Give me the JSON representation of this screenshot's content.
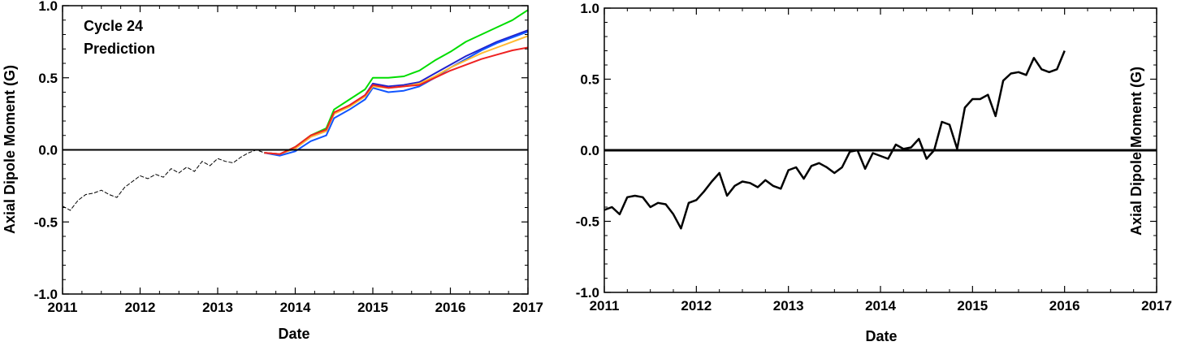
{
  "chart_data": [
    {
      "type": "line",
      "annotation_lines": [
        "Cycle 24",
        "Prediction"
      ],
      "xlabel": "Date",
      "ylabel": "Axial Dipole Moment (G)",
      "xlim": [
        2011,
        2017
      ],
      "ylim": [
        -1.0,
        1.0
      ],
      "xticks": [
        "2011",
        "2012",
        "2013",
        "2014",
        "2015",
        "2016",
        "2017"
      ],
      "yticks": [
        "-1.0",
        "-0.5",
        "0.0",
        "0.5",
        "1.0"
      ],
      "zero_line": true,
      "observed": {
        "style": "dashed-black",
        "x": [
          2011.0,
          2011.1,
          2011.2,
          2011.3,
          2011.4,
          2011.5,
          2011.6,
          2011.7,
          2011.8,
          2011.9,
          2012.0,
          2012.1,
          2012.2,
          2012.3,
          2012.4,
          2012.5,
          2012.6,
          2012.7,
          2012.8,
          2012.9,
          2013.0,
          2013.1,
          2013.2,
          2013.3,
          2013.4,
          2013.5,
          2013.6
        ],
        "y": [
          -0.39,
          -0.42,
          -0.35,
          -0.31,
          -0.3,
          -0.28,
          -0.31,
          -0.33,
          -0.26,
          -0.22,
          -0.18,
          -0.2,
          -0.17,
          -0.19,
          -0.13,
          -0.16,
          -0.12,
          -0.15,
          -0.08,
          -0.11,
          -0.06,
          -0.08,
          -0.09,
          -0.05,
          -0.02,
          0.0,
          -0.02
        ]
      },
      "series": [
        {
          "color": "#00dd00",
          "x": [
            2013.6,
            2013.8,
            2014.0,
            2014.2,
            2014.4,
            2014.5,
            2014.7,
            2014.9,
            2015.0,
            2015.2,
            2015.4,
            2015.6,
            2015.8,
            2016.0,
            2016.2,
            2016.4,
            2016.6,
            2016.8,
            2017.0
          ],
          "y": [
            -0.02,
            -0.03,
            0.02,
            0.1,
            0.15,
            0.28,
            0.35,
            0.42,
            0.5,
            0.5,
            0.51,
            0.55,
            0.62,
            0.68,
            0.75,
            0.8,
            0.85,
            0.9,
            0.97
          ]
        },
        {
          "color": "#2222cc",
          "x": [
            2013.6,
            2013.8,
            2014.0,
            2014.2,
            2014.4,
            2014.5,
            2014.7,
            2014.9,
            2015.0,
            2015.2,
            2015.4,
            2015.6,
            2015.8,
            2016.0,
            2016.2,
            2016.4,
            2016.6,
            2016.8,
            2017.0
          ],
          "y": [
            -0.02,
            -0.03,
            0.01,
            0.09,
            0.13,
            0.25,
            0.31,
            0.38,
            0.46,
            0.44,
            0.45,
            0.47,
            0.53,
            0.59,
            0.65,
            0.7,
            0.75,
            0.79,
            0.83
          ]
        },
        {
          "color": "#1155ff",
          "x": [
            2013.6,
            2013.8,
            2014.0,
            2014.2,
            2014.4,
            2014.5,
            2014.7,
            2014.9,
            2015.0,
            2015.2,
            2015.4,
            2015.6,
            2015.8,
            2016.0,
            2016.2,
            2016.4,
            2016.6,
            2016.8,
            2017.0
          ],
          "y": [
            -0.02,
            -0.04,
            -0.01,
            0.06,
            0.1,
            0.22,
            0.28,
            0.35,
            0.43,
            0.4,
            0.41,
            0.44,
            0.5,
            0.57,
            0.63,
            0.69,
            0.74,
            0.78,
            0.82
          ]
        },
        {
          "color": "#ffbb33",
          "x": [
            2013.6,
            2013.8,
            2014.0,
            2014.2,
            2014.4,
            2014.5,
            2014.7,
            2014.9,
            2015.0,
            2015.2,
            2015.4,
            2015.6,
            2015.8,
            2016.0,
            2016.2,
            2016.4,
            2016.6,
            2016.8,
            2017.0
          ],
          "y": [
            -0.02,
            -0.03,
            0.01,
            0.09,
            0.13,
            0.25,
            0.3,
            0.37,
            0.44,
            0.43,
            0.44,
            0.46,
            0.51,
            0.57,
            0.62,
            0.67,
            0.71,
            0.75,
            0.79
          ]
        },
        {
          "color": "#ee2222",
          "x": [
            2013.6,
            2013.8,
            2014.0,
            2014.2,
            2014.4,
            2014.5,
            2014.7,
            2014.9,
            2015.0,
            2015.2,
            2015.4,
            2015.6,
            2015.8,
            2016.0,
            2016.2,
            2016.4,
            2016.6,
            2016.8,
            2017.0
          ],
          "y": [
            -0.02,
            -0.03,
            0.02,
            0.1,
            0.14,
            0.26,
            0.31,
            0.38,
            0.45,
            0.43,
            0.44,
            0.45,
            0.5,
            0.55,
            0.59,
            0.63,
            0.66,
            0.69,
            0.71
          ]
        }
      ]
    },
    {
      "type": "line",
      "xlabel": "Date",
      "ylabel": "Axial Dipole Moment (G)",
      "xlim": [
        2011,
        2017
      ],
      "ylim": [
        -1.0,
        1.0
      ],
      "xticks": [
        "2011",
        "2012",
        "2013",
        "2014",
        "2015",
        "2016",
        "2017"
      ],
      "yticks": [
        "-1.0",
        "-0.5",
        "0.0",
        "0.5",
        "1.0"
      ],
      "zero_line": true,
      "series": [
        {
          "color": "#000000",
          "x": [
            2011.0,
            2011.083,
            2011.167,
            2011.25,
            2011.333,
            2011.417,
            2011.5,
            2011.583,
            2011.667,
            2011.75,
            2011.833,
            2011.917,
            2012.0,
            2012.083,
            2012.167,
            2012.25,
            2012.333,
            2012.417,
            2012.5,
            2012.583,
            2012.667,
            2012.75,
            2012.833,
            2012.917,
            2013.0,
            2013.083,
            2013.167,
            2013.25,
            2013.333,
            2013.417,
            2013.5,
            2013.583,
            2013.667,
            2013.75,
            2013.833,
            2013.917,
            2014.0,
            2014.083,
            2014.167,
            2014.25,
            2014.333,
            2014.417,
            2014.5,
            2014.583,
            2014.667,
            2014.75,
            2014.833,
            2014.917,
            2015.0,
            2015.083,
            2015.167,
            2015.25,
            2015.333,
            2015.417,
            2015.5,
            2015.583,
            2015.667,
            2015.75,
            2015.833,
            2015.917,
            2016.0
          ],
          "y": [
            -0.42,
            -0.4,
            -0.45,
            -0.33,
            -0.32,
            -0.33,
            -0.4,
            -0.37,
            -0.38,
            -0.45,
            -0.55,
            -0.37,
            -0.35,
            -0.29,
            -0.22,
            -0.16,
            -0.32,
            -0.25,
            -0.22,
            -0.23,
            -0.26,
            -0.21,
            -0.25,
            -0.27,
            -0.14,
            -0.12,
            -0.2,
            -0.11,
            -0.09,
            -0.12,
            -0.16,
            -0.12,
            -0.01,
            -0.0,
            -0.13,
            -0.02,
            -0.04,
            -0.06,
            0.04,
            0.01,
            0.02,
            0.08,
            -0.06,
            0.0,
            0.2,
            0.18,
            0.01,
            0.3,
            0.36,
            0.36,
            0.39,
            0.24,
            0.49,
            0.54,
            0.55,
            0.53,
            0.65,
            0.57,
            0.55,
            0.57,
            0.7
          ]
        }
      ]
    }
  ]
}
